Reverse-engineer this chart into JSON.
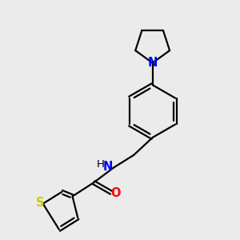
{
  "background_color": "#ebebeb",
  "bond_color": "#000000",
  "atom_colors": {
    "N": "#0000ff",
    "O": "#ff0000",
    "S": "#cccc00"
  },
  "line_width": 1.6,
  "font_size": 10.5,
  "figsize": [
    3.0,
    3.0
  ],
  "dpi": 100
}
